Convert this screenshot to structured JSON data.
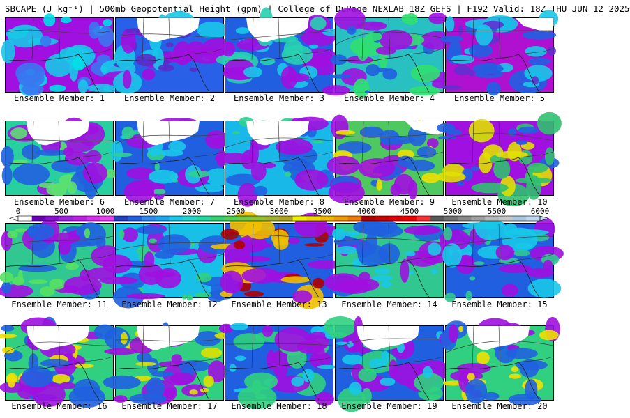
{
  "header": {
    "title": "SBCAPE (J kg⁻¹) | 500mb Geopotential Height (gpm) | College of DuPage NEXLAB 18Z GEFS | F192 Valid: 18Z THU JUN 12 2025"
  },
  "panels": [
    {
      "label": "Ensemble Member: 1",
      "base": "#a010e0",
      "patches": [
        "#18c8e8",
        "#3878f0",
        "#00e0e8"
      ],
      "snow": "none"
    },
    {
      "label": "Ensemble Member: 2",
      "base": "#2860e8",
      "patches": [
        "#a010e0",
        "#18c8e8",
        "#5a2cc8"
      ],
      "snow": "top"
    },
    {
      "label": "Ensemble Member: 3",
      "base": "#2060e0",
      "patches": [
        "#a010e0",
        "#28d0b0",
        "#18c8e8"
      ],
      "snow": "top"
    },
    {
      "label": "Ensemble Member: 4",
      "base": "#28c0c0",
      "patches": [
        "#a010e0",
        "#30e070",
        "#2060e0"
      ],
      "snow": "none"
    },
    {
      "label": "Ensemble Member: 5",
      "base": "#b010d0",
      "patches": [
        "#2060e0",
        "#18c8e8",
        "#6030d0"
      ],
      "snow": "topright"
    },
    {
      "label": "Ensemble Member: 6",
      "base": "#28d0a0",
      "patches": [
        "#a010e0",
        "#2060e0",
        "#5ce070"
      ],
      "snow": "top"
    },
    {
      "label": "Ensemble Member: 7",
      "base": "#2060e0",
      "patches": [
        "#a010e0",
        "#18c8e8",
        "#30d090"
      ],
      "snow": "top"
    },
    {
      "label": "Ensemble Member: 8",
      "base": "#18b8e8",
      "patches": [
        "#a010e0",
        "#2060e0",
        "#30d090"
      ],
      "snow": "top"
    },
    {
      "label": "Ensemble Member: 9",
      "base": "#50c860",
      "patches": [
        "#a010e0",
        "#2060e0",
        "#f0e000"
      ],
      "snow": "topright"
    },
    {
      "label": "Ensemble Member: 10",
      "base": "#a010e0",
      "patches": [
        "#30c070",
        "#e0e000",
        "#2060e0"
      ],
      "snow": "none"
    },
    {
      "label": "Ensemble Member: 11",
      "base": "#30c890",
      "patches": [
        "#a010e0",
        "#2060e0",
        "#58e060"
      ],
      "snow": "none"
    },
    {
      "label": "Ensemble Member: 12",
      "base": "#18c0e8",
      "patches": [
        "#a010e0",
        "#2060e0",
        "#30d080"
      ],
      "snow": "none"
    },
    {
      "label": "Ensemble Member: 13",
      "base": "#2060e0",
      "patches": [
        "#a010e0",
        "#f0c000",
        "#b00000"
      ],
      "snow": "none"
    },
    {
      "label": "Ensemble Member: 14",
      "base": "#30c890",
      "patches": [
        "#a010e0",
        "#2060e0",
        "#18c8e8"
      ],
      "snow": "none"
    },
    {
      "label": "Ensemble Member: 15",
      "base": "#2060e0",
      "patches": [
        "#a010e0",
        "#18c8e8",
        "#30c890"
      ],
      "snow": "none"
    },
    {
      "label": "Ensemble Member: 16",
      "base": "#30d080",
      "patches": [
        "#2060e0",
        "#a010e0",
        "#f0e000"
      ],
      "snow": "top"
    },
    {
      "label": "Ensemble Member: 17",
      "base": "#30d080",
      "patches": [
        "#a010e0",
        "#2060e0",
        "#e0e000"
      ],
      "snow": "top"
    },
    {
      "label": "Ensemble Member: 18",
      "base": "#2060e0",
      "patches": [
        "#a010e0",
        "#30d080",
        "#18c8e8"
      ],
      "snow": "none"
    },
    {
      "label": "Ensemble Member: 19",
      "base": "#2060e0",
      "patches": [
        "#a010e0",
        "#30d080",
        "#18c8e8"
      ],
      "snow": "top"
    },
    {
      "label": "Ensemble Member: 20",
      "base": "#30d080",
      "patches": [
        "#2060e0",
        "#a010e0",
        "#f0e000"
      ],
      "snow": "top"
    }
  ],
  "colorbar": {
    "ticks": [
      "0",
      "500",
      "1000",
      "1500",
      "2000",
      "2500",
      "3000",
      "3500",
      "4000",
      "4500",
      "5000",
      "5500",
      "6000"
    ],
    "colors": [
      "#ffffff",
      "#6a00b8",
      "#8a10d0",
      "#a020e0",
      "#c020e8",
      "#d830f0",
      "#ea40f0",
      "#2040c0",
      "#2060e0",
      "#3088f0",
      "#18a8f0",
      "#18c8e8",
      "#20d8d0",
      "#20d8a0",
      "#30d070",
      "#50d050",
      "#70c840",
      "#90c030",
      "#a0b030",
      "#b0a020",
      "#f0f000",
      "#f0d800",
      "#f0b800",
      "#f09800",
      "#f07800",
      "#b00000",
      "#c80000",
      "#e00000",
      "#f00000",
      "#ff3030",
      "#585858",
      "#707070",
      "#888888",
      "#a0a0a0",
      "#b8b8b8",
      "#c8c8c8",
      "#a8c8e0",
      "#c0d8f0"
    ]
  }
}
